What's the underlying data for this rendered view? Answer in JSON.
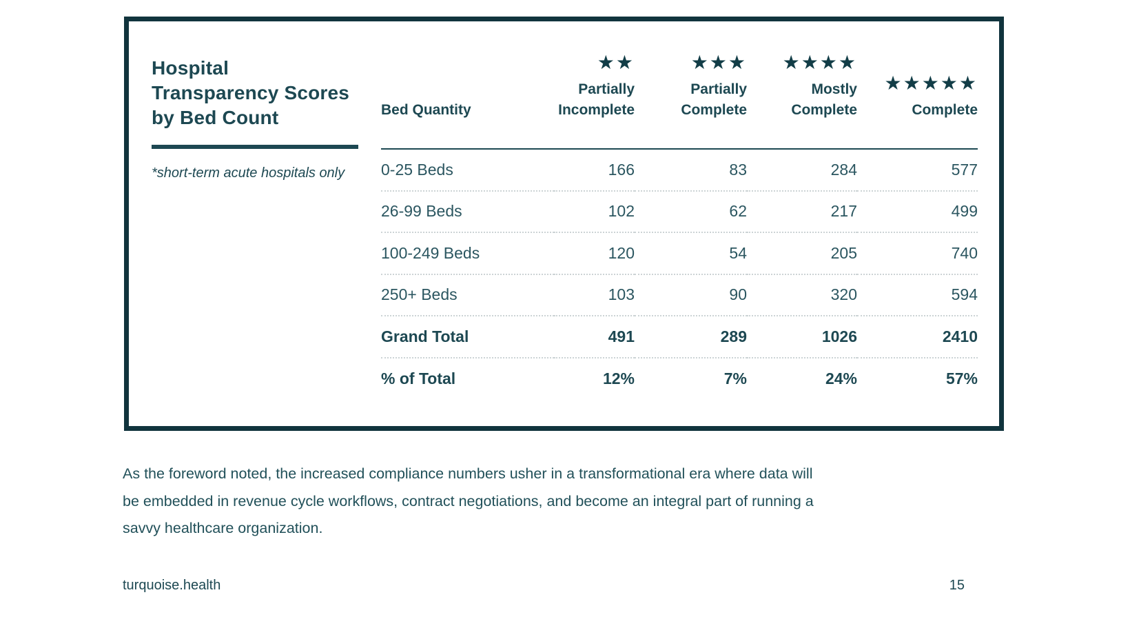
{
  "card": {
    "title": "Hospital\nTransparency Scores\nby Bed Count",
    "note": "*short-term acute hospitals only"
  },
  "table": {
    "columns": [
      {
        "label": "Bed Quantity",
        "stars": 0
      },
      {
        "label": "Partially\nIncomplete",
        "stars": 2
      },
      {
        "label": "Partially\nComplete",
        "stars": 3
      },
      {
        "label": "Mostly\nComplete",
        "stars": 4
      },
      {
        "label": "Complete",
        "stars": 5
      }
    ],
    "rows": [
      {
        "label": "0-25 Beds",
        "values": [
          "166",
          "83",
          "284",
          "577"
        ],
        "bold": false
      },
      {
        "label": "26-99 Beds",
        "values": [
          "102",
          "62",
          "217",
          "499"
        ],
        "bold": false
      },
      {
        "label": "100-249 Beds",
        "values": [
          "120",
          "54",
          "205",
          "740"
        ],
        "bold": false
      },
      {
        "label": "250+ Beds",
        "values": [
          "103",
          "90",
          "320",
          "594"
        ],
        "bold": false
      },
      {
        "label": "Grand Total",
        "values": [
          "491",
          "289",
          "1026",
          "2410"
        ],
        "bold": true
      },
      {
        "label": "% of Total",
        "values": [
          "12%",
          "7%",
          "24%",
          "57%"
        ],
        "bold": true
      }
    ],
    "star_icon": "★"
  },
  "paragraph": {
    "text": "As the foreword noted, the increased compliance numbers usher in a transformational era where data will\nbe embedded in revenue cycle workflows, contract negotiations, and become an integral part of running a\nsavvy healthcare organization."
  },
  "footer": {
    "site": "turquoise.health",
    "page_number": "15"
  },
  "colors": {
    "frame_border": "#11343d",
    "heading_text": "#1d4852",
    "body_text": "#2b5660",
    "star_fill": "#123d47",
    "dotted_separator": "#ccd3d5",
    "background": "#ffffff"
  }
}
